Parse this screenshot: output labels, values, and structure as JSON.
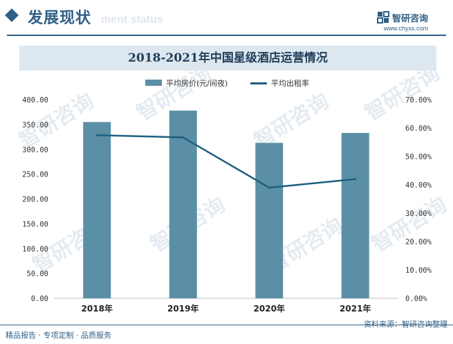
{
  "header": {
    "section_title": "发展现状",
    "section_subtitle": "ment status",
    "brand_name": "智研咨询",
    "brand_url": "www.chyxx.com"
  },
  "colors": {
    "accent": "#2f5f86",
    "bar": "#5b8fa6",
    "line": "#1d5f80",
    "title_band": "#dde7ef"
  },
  "chart_data": {
    "type": "bar",
    "title": "2018-2021年中国星级酒店运营情况",
    "categories": [
      "2018年",
      "2019年",
      "2020年",
      "2021年"
    ],
    "series": [
      {
        "name": "平均房价(元/间夜)",
        "type": "bar",
        "axis": "left",
        "values": [
          355,
          378,
          313,
          333
        ]
      },
      {
        "name": "平均出租率",
        "type": "line",
        "axis": "right",
        "values": [
          57.5,
          56.7,
          39.0,
          42.0
        ]
      }
    ],
    "y_left": {
      "min": 0,
      "max": 400,
      "step": 50,
      "ticks": [
        "0.00",
        "50.00",
        "100.00",
        "150.00",
        "200.00",
        "250.00",
        "300.00",
        "350.00",
        "400.00"
      ]
    },
    "y_right": {
      "min": 0,
      "max": 70,
      "step": 10,
      "ticks": [
        "0.00%",
        "10.00%",
        "20.00%",
        "30.00%",
        "40.00%",
        "50.00%",
        "60.00%",
        "70.00%"
      ]
    },
    "legend_position": "top-center",
    "grid": false
  },
  "footer": {
    "left": "精品报告 · 专项定制 · 品质服务",
    "right": "资料来源：智研咨询整理",
    "watermark": "智研咨询"
  }
}
